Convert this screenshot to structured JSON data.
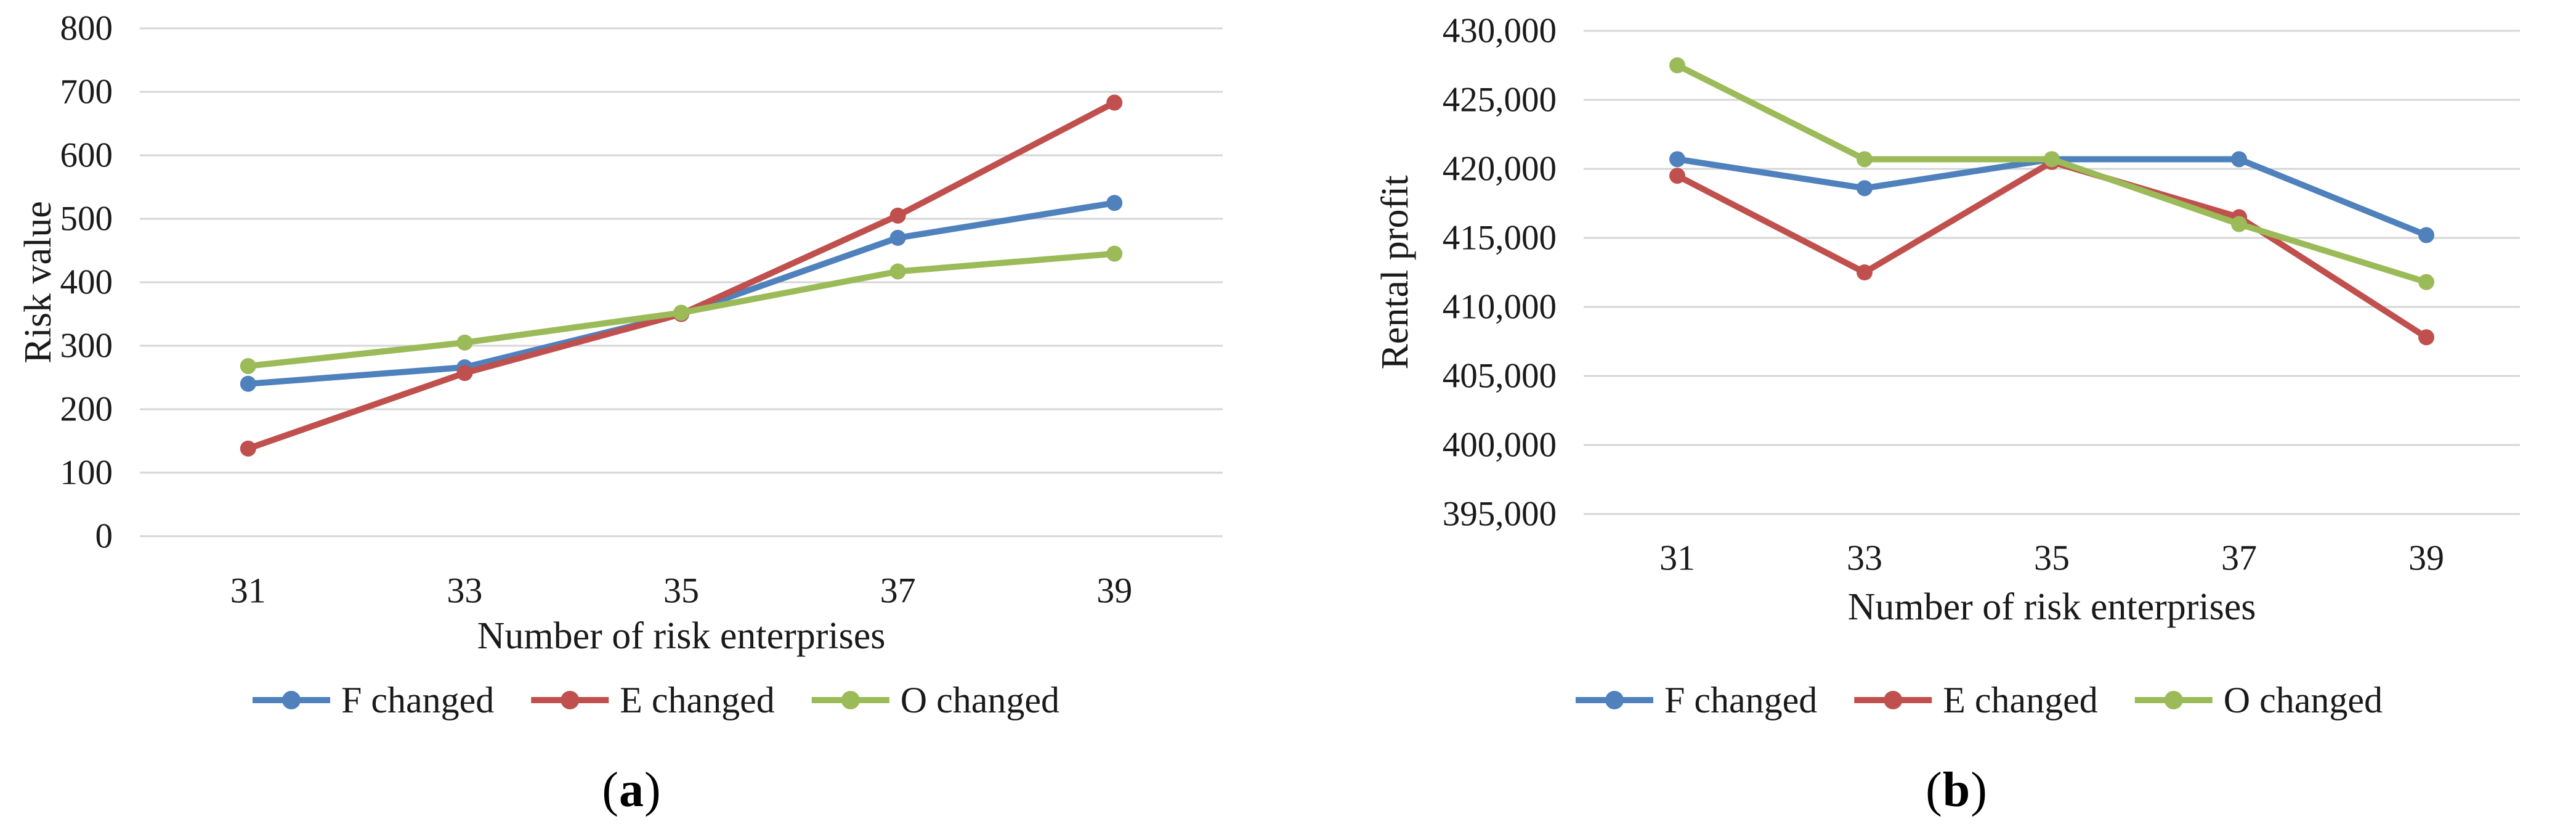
{
  "colors": {
    "series_blue": "#4F81BD",
    "series_red": "#C0504D",
    "series_green": "#9BBB59",
    "gridline": "#D6D6D6",
    "text": "#1A1A1A",
    "background": "#FFFFFF"
  },
  "chart_data": [
    {
      "type": "line",
      "title": "",
      "xlabel": "Number of risk enterprises",
      "ylabel": "Risk value",
      "categories": [
        "31",
        "33",
        "35",
        "37",
        "39"
      ],
      "series": [
        {
          "name": "F changed",
          "color": "#4F81BD",
          "values": [
            240,
            266,
            350,
            470,
            525
          ]
        },
        {
          "name": "E changed",
          "color": "#C0504D",
          "values": [
            138,
            257,
            350,
            505,
            683
          ]
        },
        {
          "name": "O changed",
          "color": "#9BBB59",
          "values": [
            268,
            305,
            352,
            417,
            445
          ]
        }
      ],
      "ylim": [
        0,
        800
      ],
      "ytick_step": 100,
      "yticks": [
        "0",
        "100",
        "200",
        "300",
        "400",
        "500",
        "600",
        "700",
        "800"
      ],
      "grid": true,
      "legend_position": "bottom",
      "caption_open": "(",
      "caption_letter": "a",
      "caption_close": ")"
    },
    {
      "type": "line",
      "title": "",
      "xlabel": "Number of risk enterprises",
      "ylabel": "Rental profit",
      "categories": [
        "31",
        "33",
        "35",
        "37",
        "39"
      ],
      "series": [
        {
          "name": "F changed",
          "color": "#4F81BD",
          "values": [
            420700,
            418600,
            420700,
            420700,
            415200
          ]
        },
        {
          "name": "E changed",
          "color": "#C0504D",
          "values": [
            419500,
            412500,
            420500,
            416500,
            407800
          ]
        },
        {
          "name": "O changed",
          "color": "#9BBB59",
          "values": [
            427500,
            420700,
            420700,
            416000,
            411800
          ]
        }
      ],
      "ylim": [
        395000,
        430000
      ],
      "ytick_step": 5000,
      "yticks": [
        "395,000",
        "400,000",
        "405,000",
        "410,000",
        "415,000",
        "420,000",
        "425,000",
        "430,000"
      ],
      "grid": true,
      "legend_position": "bottom",
      "caption_open": "(",
      "caption_letter": "b",
      "caption_close": ")"
    }
  ]
}
